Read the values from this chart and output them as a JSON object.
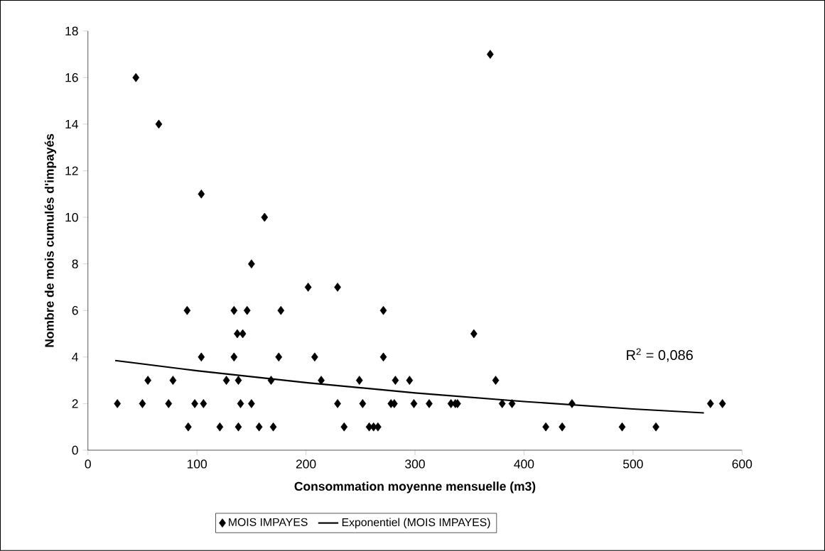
{
  "chart_data": {
    "type": "scatter",
    "xlabel": "Consommation moyenne mensuelle (m3)",
    "ylabel": "Nombre de mois cumulés d'impayés",
    "xlim": [
      0,
      600
    ],
    "xticks": [
      0,
      100,
      200,
      300,
      400,
      500,
      600
    ],
    "ylim": [
      0,
      18
    ],
    "yticks": [
      0,
      2,
      4,
      6,
      8,
      10,
      12,
      14,
      16,
      18
    ],
    "legend": "bottom",
    "grid": false,
    "annotations": [
      "R$^{2}$ = 0,086"
    ],
    "series": [
      {
        "name": "MOIS IMPAYES",
        "color": "#000000",
        "marker": "diamond",
        "x": [
          27,
          50,
          55,
          44,
          74,
          78,
          65,
          91,
          92,
          98,
          104,
          104,
          106,
          121,
          127,
          134,
          134,
          137,
          138,
          138,
          140,
          142,
          146,
          150,
          150,
          157,
          162,
          168,
          170,
          175,
          177,
          202,
          208,
          214,
          229,
          229,
          235,
          249,
          252,
          258,
          262,
          266,
          271,
          271,
          278,
          281,
          282,
          295,
          299,
          313,
          333,
          337,
          339,
          354,
          369,
          374,
          380,
          389,
          420,
          435,
          444,
          490,
          521,
          571,
          582
        ],
        "values": [
          2,
          2,
          3,
          16,
          2,
          3,
          14,
          6,
          1,
          2,
          11,
          4,
          2,
          1,
          3,
          4,
          6,
          5,
          3,
          1,
          2,
          5,
          6,
          2,
          8,
          1,
          10,
          3,
          1,
          4,
          6,
          7,
          4,
          3,
          2,
          7,
          1,
          3,
          2,
          1,
          1,
          1,
          6,
          4,
          2,
          2,
          3,
          3,
          2,
          2,
          2,
          2,
          2,
          5,
          17,
          3,
          2,
          2,
          1,
          1,
          2,
          1,
          1,
          2,
          2
        ]
      },
      {
        "name": "Exponentiel (MOIS IMPAYES)",
        "type": "line",
        "color": "#000000",
        "line_style": "solid",
        "x": [
          25,
          100,
          200,
          300,
          400,
          500,
          565
        ],
        "values": [
          3.85,
          3.41,
          2.9,
          2.46,
          2.09,
          1.77,
          1.6
        ]
      }
    ]
  }
}
